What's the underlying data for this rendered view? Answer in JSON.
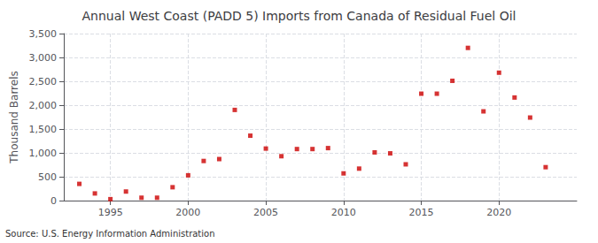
{
  "chart_data": {
    "type": "scatter",
    "title": "Annual West Coast (PADD 5) Imports from Canada of Residual Fuel Oil",
    "ylabel": "Thousand Barrels",
    "source": "Source: U.S. Energy Information Administration",
    "x": [
      1993,
      1994,
      1995,
      1996,
      1997,
      1998,
      1999,
      2000,
      2001,
      2002,
      2003,
      2004,
      2005,
      2006,
      2007,
      2008,
      2009,
      2010,
      2011,
      2012,
      2013,
      2014,
      2015,
      2016,
      2017,
      2018,
      2019,
      2020,
      2021,
      2022,
      2023
    ],
    "values": [
      350,
      150,
      30,
      190,
      60,
      60,
      280,
      530,
      830,
      870,
      1900,
      1360,
      1090,
      930,
      1080,
      1080,
      1100,
      570,
      670,
      1010,
      990,
      760,
      2240,
      2240,
      2510,
      3200,
      1870,
      2680,
      2160,
      1740,
      700
    ],
    "color": "#cc0000",
    "marker": "square",
    "xlim": [
      1992,
      2025
    ],
    "xticks": [
      1995,
      2000,
      2005,
      2010,
      2015,
      2020
    ],
    "ylim": [
      0,
      3500
    ],
    "yticks": [
      0,
      500,
      {
        "value": 1000,
        "label": "1,000"
      },
      {
        "value": 1500,
        "label": "1,500"
      },
      {
        "value": 2000,
        "label": "2,000"
      },
      {
        "value": 2500,
        "label": "2,500"
      },
      {
        "value": 3000,
        "label": "3,000"
      },
      {
        "value": 3500,
        "label": "3,500"
      }
    ],
    "grid": true
  }
}
